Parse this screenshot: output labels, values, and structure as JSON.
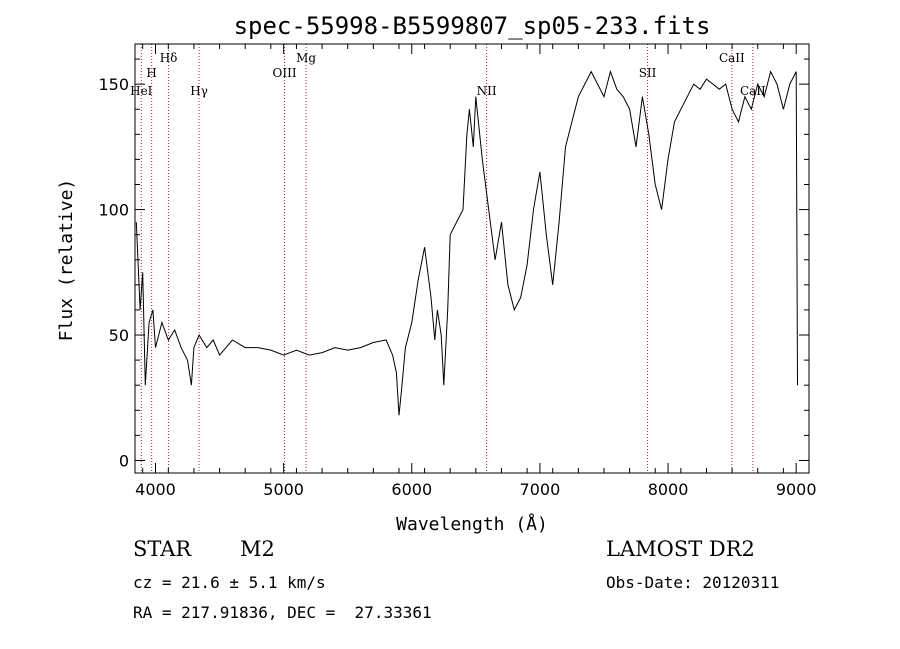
{
  "chart_data": {
    "type": "line",
    "title": "spec-55998-B5599807_sp05-233.fits",
    "xlabel": "Wavelength (Å)",
    "ylabel": "Flux (relative)",
    "xlim": [
      3840,
      9100
    ],
    "ylim": [
      -5,
      166
    ],
    "xticks": [
      "4000",
      "5000",
      "6000",
      "7000",
      "8000",
      "9000"
    ],
    "yticks": [
      "0",
      "50",
      "100",
      "150"
    ],
    "grid": false,
    "series": [
      {
        "x": [
          3850,
          3880,
          3900,
          3920,
          3950,
          3980,
          4000,
          4050,
          4100,
          4150,
          4200,
          4250,
          4280,
          4300,
          4340,
          4400,
          4450,
          4500,
          4600,
          4700,
          4800,
          4900,
          5000,
          5100,
          5200,
          5300,
          5400,
          5500,
          5600,
          5700,
          5800,
          5850,
          5880,
          5900,
          5920,
          5950,
          6000,
          6050,
          6100,
          6150,
          6180,
          6200,
          6230,
          6250,
          6280,
          6300,
          6350,
          6400,
          6430,
          6450,
          6480,
          6500,
          6550,
          6600,
          6650,
          6700,
          6750,
          6800,
          6850,
          6900,
          6950,
          7000,
          7050,
          7100,
          7150,
          7200,
          7250,
          7300,
          7350,
          7400,
          7450,
          7500,
          7550,
          7600,
          7650,
          7700,
          7750,
          7800,
          7850,
          7900,
          7950,
          8000,
          8050,
          8100,
          8150,
          8200,
          8250,
          8300,
          8350,
          8400,
          8450,
          8500,
          8550,
          8600,
          8650,
          8700,
          8750,
          8800,
          8850,
          8900,
          8950,
          9000,
          9010
        ],
        "y": [
          95,
          60,
          75,
          30,
          55,
          60,
          45,
          55,
          48,
          52,
          45,
          40,
          30,
          45,
          50,
          45,
          48,
          42,
          48,
          45,
          45,
          44,
          42,
          44,
          42,
          43,
          45,
          44,
          45,
          47,
          48,
          42,
          35,
          18,
          28,
          45,
          55,
          72,
          85,
          65,
          48,
          60,
          50,
          30,
          60,
          90,
          95,
          100,
          130,
          140,
          125,
          145,
          120,
          100,
          80,
          95,
          70,
          60,
          65,
          78,
          100,
          115,
          90,
          70,
          95,
          125,
          135,
          145,
          150,
          155,
          150,
          145,
          155,
          148,
          145,
          140,
          125,
          145,
          130,
          110,
          100,
          120,
          135,
          140,
          145,
          150,
          148,
          152,
          150,
          148,
          150,
          140,
          135,
          145,
          140,
          150,
          145,
          155,
          150,
          140,
          150,
          155,
          30
        ]
      }
    ],
    "lines": [
      {
        "label": "HeI",
        "x": 3889,
        "row": 3
      },
      {
        "label": "H",
        "x": 3970,
        "row": 2
      },
      {
        "label": "Hδ",
        "x": 4102,
        "row": 1
      },
      {
        "label": "Hγ",
        "x": 4340,
        "row": 3
      },
      {
        "label": "OIII",
        "x": 5007,
        "row": 2
      },
      {
        "label": "Mg",
        "x": 5175,
        "row": 1
      },
      {
        "label": "NII",
        "x": 6584,
        "row": 3
      },
      {
        "label": "SII",
        "x": 7840,
        "row": 2
      },
      {
        "label": "CaII",
        "x": 8498,
        "row": 1
      },
      {
        "label": "CaII",
        "x": 8662,
        "row": 3
      }
    ]
  },
  "info": {
    "object_type": "STAR",
    "subclass": "M2",
    "survey": "LAMOST DR2",
    "cz": "cz = 21.6 ± 5.1 km/s",
    "obs_date": "Obs-Date: 20120311",
    "coords": "RA = 217.91836, DEC =  27.33361"
  },
  "colors": {
    "spectrum": "#000000",
    "line_markers": "#b22222",
    "axes": "#000000"
  }
}
